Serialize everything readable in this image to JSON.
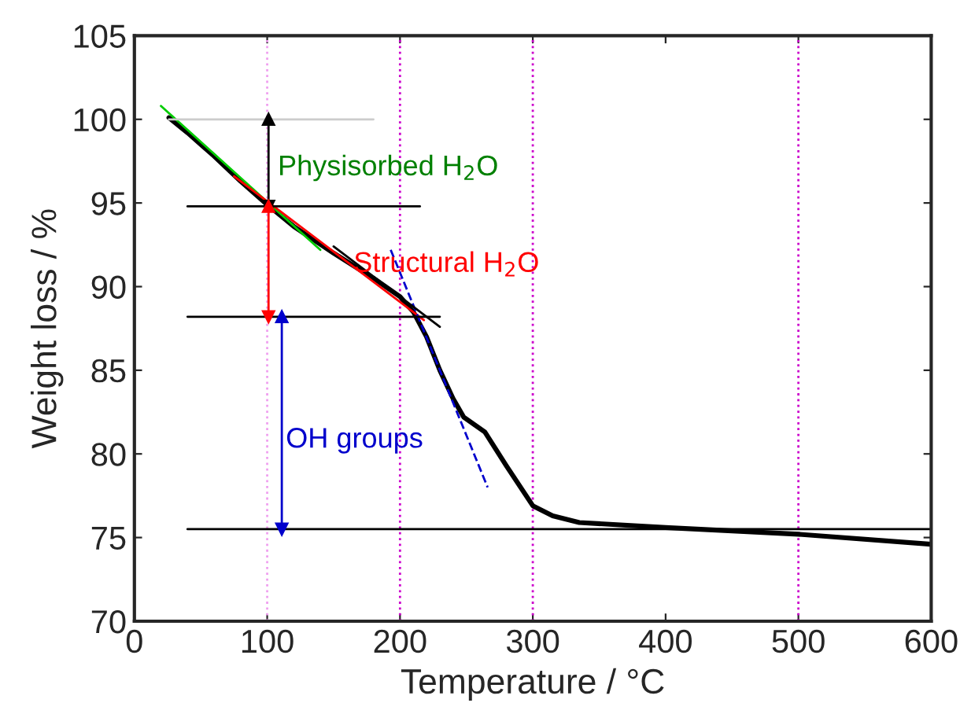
{
  "chart_data": {
    "type": "line",
    "xlabel": "Temperature / °C",
    "ylabel": "Weight loss / %",
    "xlim": [
      0,
      600
    ],
    "ylim": [
      70,
      105
    ],
    "xticks": [
      0,
      100,
      200,
      300,
      400,
      500,
      600
    ],
    "yticks": [
      70,
      75,
      80,
      85,
      90,
      95,
      100,
      105
    ],
    "grid": false,
    "legend": false,
    "series": [
      {
        "color": "#000000",
        "x": [
          26,
          40,
          60,
          80,
          100,
          120,
          150,
          180,
          200,
          210,
          220,
          230,
          240,
          248,
          264,
          280,
          300,
          315,
          335,
          400,
          500,
          600
        ],
        "values": [
          100.1,
          99.2,
          97.8,
          96.3,
          94.9,
          93.6,
          92.0,
          90.5,
          89.4,
          88.5,
          87.0,
          85.0,
          83.3,
          82.2,
          81.3,
          79.3,
          76.9,
          76.3,
          75.9,
          75.6,
          75.2,
          74.6
        ]
      },
      {
        "color": "#00cc00",
        "x": [
          20,
          140
        ],
        "values": [
          100.8,
          92.2
        ]
      },
      {
        "color": "#ff0000",
        "x": [
          75,
          218
        ],
        "values": [
          96.6,
          88.0
        ]
      },
      {
        "color": "#0000cc",
        "line_style": "dashed",
        "x": [
          193,
          266
        ],
        "values": [
          92.2,
          78.0
        ]
      },
      {
        "color": "#000000",
        "x": [
          150,
          230
        ],
        "values": [
          92.4,
          87.6
        ]
      },
      {
        "color": "#cccccc",
        "x": [
          26,
          180
        ],
        "values": [
          100,
          100
        ]
      },
      {
        "color": "#000000",
        "x": [
          40,
          215
        ],
        "values": [
          94.8,
          94.8
        ]
      },
      {
        "color": "#000000",
        "x": [
          40,
          230
        ],
        "values": [
          88.2,
          88.2
        ]
      },
      {
        "color": "#000000",
        "x": [
          40,
          600
        ],
        "values": [
          75.5,
          75.5
        ]
      },
      {
        "color": "#000000",
        "marker": "triangle",
        "x": [
          101,
          101
        ],
        "values": [
          100,
          94.8
        ]
      },
      {
        "color": "#ff0000",
        "marker": "triangle",
        "x": [
          101,
          101
        ],
        "values": [
          94.8,
          88.2
        ]
      },
      {
        "color": "#0000cc",
        "marker": "triangle",
        "x": [
          111,
          111
        ],
        "values": [
          88.2,
          75.5
        ]
      }
    ],
    "ref_lines": [
      {
        "axis": "x",
        "value": 100,
        "color": "#f0a0f0",
        "line_style": "dotted"
      },
      {
        "axis": "x",
        "value": 200,
        "color": "#cc00cc",
        "line_style": "dotted"
      },
      {
        "axis": "x",
        "value": 300,
        "color": "#cc00cc",
        "line_style": "dotted"
      },
      {
        "axis": "x",
        "value": 500,
        "color": "#cc00cc",
        "line_style": "dotted"
      }
    ],
    "annotations": [
      "Physisorbed H$_{2}$O",
      "Structural H$_{2}$O",
      "OH groups"
    ]
  }
}
